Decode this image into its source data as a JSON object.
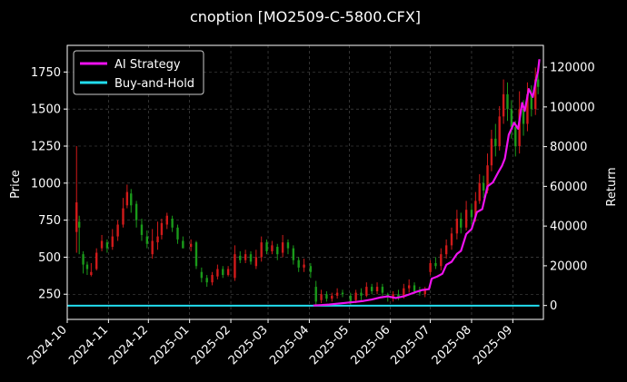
{
  "chart_data": {
    "type": "candlestick+line",
    "title": "cnoption [MO2509-C-5800.CFX]",
    "ylabel_left": "Price",
    "ylabel_right": "Return",
    "x_start": "2024-10-01",
    "x_end": "2025-09-24",
    "x_ticks": [
      "2024-10",
      "2024-11",
      "2024-12",
      "2025-01",
      "2025-02",
      "2025-03",
      "2025-04",
      "2025-05",
      "2025-06",
      "2025-07",
      "2025-08",
      "2025-09"
    ],
    "ylim_left": [
      80,
      1930
    ],
    "yticks_left": [
      250,
      500,
      750,
      1000,
      1250,
      1500,
      1750
    ],
    "ylim_right": [
      -7000,
      131000
    ],
    "yticks_right": [
      0,
      20000,
      40000,
      60000,
      80000,
      100000,
      120000
    ],
    "grid": true,
    "legend_position": "top-left",
    "colors": {
      "background": "#000000",
      "up_candle": "#d11a1a",
      "down_candle": "#1a9a1a",
      "ai_strategy": "#ee11ee",
      "buy_and_hold": "#22ddee",
      "grid": "#555555",
      "legend_border": "#cccccc"
    },
    "series": [
      {
        "name": "AI Strategy",
        "points": [
          [
            "2025-04-04",
            0
          ],
          [
            "2025-04-10",
            200
          ],
          [
            "2025-04-16",
            500
          ],
          [
            "2025-04-22",
            900
          ],
          [
            "2025-04-28",
            1300
          ],
          [
            "2025-05-06",
            1800
          ],
          [
            "2025-05-12",
            2300
          ],
          [
            "2025-05-18",
            3000
          ],
          [
            "2025-05-24",
            4000
          ],
          [
            "2025-05-30",
            4600
          ],
          [
            "2025-06-05",
            3800
          ],
          [
            "2025-06-11",
            4600
          ],
          [
            "2025-06-16",
            5800
          ],
          [
            "2025-06-20",
            6800
          ],
          [
            "2025-06-25",
            7800
          ],
          [
            "2025-06-30",
            8200
          ],
          [
            "2025-07-02",
            13500
          ],
          [
            "2025-07-06",
            14500
          ],
          [
            "2025-07-10",
            16000
          ],
          [
            "2025-07-13",
            20500
          ],
          [
            "2025-07-17",
            22000
          ],
          [
            "2025-07-21",
            26000
          ],
          [
            "2025-07-24",
            27500
          ],
          [
            "2025-07-28",
            36000
          ],
          [
            "2025-08-01",
            38500
          ],
          [
            "2025-08-05",
            47000
          ],
          [
            "2025-08-09",
            48500
          ],
          [
            "2025-08-13",
            60000
          ],
          [
            "2025-08-17",
            62000
          ],
          [
            "2025-08-21",
            67000
          ],
          [
            "2025-08-24",
            70500
          ],
          [
            "2025-08-26",
            74000
          ],
          [
            "2025-08-29",
            86000
          ],
          [
            "2025-09-02",
            92000
          ],
          [
            "2025-09-05",
            89000
          ],
          [
            "2025-09-08",
            102000
          ],
          [
            "2025-09-10",
            98000
          ],
          [
            "2025-09-13",
            109000
          ],
          [
            "2025-09-16",
            105000
          ],
          [
            "2025-09-18",
            112000
          ],
          [
            "2025-09-20",
            118000
          ],
          [
            "2025-09-21",
            124000
          ]
        ]
      },
      {
        "name": "Buy-and-Hold",
        "points": [
          [
            "2024-10-01",
            -100
          ],
          [
            "2025-09-21",
            -100
          ]
        ]
      }
    ],
    "candles": [
      [
        "2024-10-08",
        670,
        870,
        530,
        1250
      ],
      [
        "2024-10-10",
        740,
        700,
        520,
        780
      ],
      [
        "2024-10-13",
        520,
        450,
        390,
        540
      ],
      [
        "2024-10-16",
        450,
        420,
        380,
        470
      ],
      [
        "2024-10-19",
        380,
        400,
        370,
        460
      ],
      [
        "2024-10-23",
        420,
        530,
        410,
        560
      ],
      [
        "2024-10-27",
        560,
        610,
        540,
        650
      ],
      [
        "2024-10-31",
        600,
        560,
        530,
        620
      ],
      [
        "2024-11-04",
        570,
        640,
        550,
        690
      ],
      [
        "2024-11-08",
        640,
        720,
        610,
        750
      ],
      [
        "2024-11-12",
        720,
        830,
        700,
        900
      ],
      [
        "2024-11-15",
        850,
        940,
        830,
        990
      ],
      [
        "2024-11-18",
        930,
        850,
        800,
        960
      ],
      [
        "2024-11-22",
        860,
        750,
        700,
        880
      ],
      [
        "2024-11-26",
        720,
        650,
        610,
        760
      ],
      [
        "2024-11-30",
        640,
        590,
        560,
        680
      ],
      [
        "2024-12-04",
        520,
        610,
        490,
        690
      ],
      [
        "2024-12-08",
        600,
        640,
        550,
        740
      ],
      [
        "2024-12-11",
        650,
        730,
        620,
        760
      ],
      [
        "2024-12-15",
        720,
        780,
        690,
        800
      ],
      [
        "2024-12-19",
        760,
        700,
        670,
        780
      ],
      [
        "2024-12-23",
        700,
        620,
        590,
        720
      ],
      [
        "2024-12-27",
        610,
        560,
        560,
        640
      ],
      [
        "2025-01-02",
        570,
        590,
        540,
        620
      ],
      [
        "2025-01-06",
        600,
        440,
        420,
        610
      ],
      [
        "2025-01-10",
        400,
        360,
        330,
        430
      ],
      [
        "2025-01-14",
        360,
        330,
        300,
        380
      ],
      [
        "2025-01-18",
        330,
        380,
        310,
        400
      ],
      [
        "2025-01-22",
        370,
        420,
        350,
        450
      ],
      [
        "2025-01-26",
        420,
        380,
        360,
        440
      ],
      [
        "2025-01-30",
        380,
        420,
        370,
        440
      ],
      [
        "2025-02-04",
        360,
        520,
        340,
        580
      ],
      [
        "2025-02-08",
        510,
        480,
        460,
        540
      ],
      [
        "2025-02-12",
        480,
        520,
        460,
        550
      ],
      [
        "2025-02-16",
        520,
        470,
        450,
        540
      ],
      [
        "2025-02-20",
        440,
        500,
        420,
        550
      ],
      [
        "2025-02-24",
        500,
        600,
        470,
        640
      ],
      [
        "2025-02-28",
        600,
        540,
        520,
        620
      ],
      [
        "2025-03-04",
        540,
        580,
        520,
        610
      ],
      [
        "2025-03-08",
        570,
        520,
        480,
        590
      ],
      [
        "2025-03-12",
        530,
        600,
        500,
        650
      ],
      [
        "2025-03-16",
        600,
        560,
        520,
        620
      ],
      [
        "2025-03-20",
        560,
        480,
        450,
        580
      ],
      [
        "2025-03-24",
        480,
        430,
        400,
        500
      ],
      [
        "2025-03-28",
        430,
        450,
        400,
        490
      ],
      [
        "2025-04-02",
        440,
        400,
        360,
        460
      ],
      [
        "2025-04-06",
        300,
        200,
        170,
        340
      ],
      [
        "2025-04-10",
        210,
        250,
        190,
        280
      ],
      [
        "2025-04-14",
        250,
        220,
        200,
        270
      ],
      [
        "2025-04-18",
        220,
        240,
        200,
        260
      ],
      [
        "2025-04-22",
        240,
        260,
        220,
        290
      ],
      [
        "2025-04-26",
        260,
        250,
        230,
        280
      ],
      [
        "2025-05-02",
        240,
        200,
        180,
        260
      ],
      [
        "2025-05-06",
        210,
        260,
        190,
        280
      ],
      [
        "2025-05-10",
        260,
        240,
        210,
        290
      ],
      [
        "2025-05-14",
        240,
        300,
        230,
        330
      ],
      [
        "2025-05-18",
        300,
        270,
        250,
        320
      ],
      [
        "2025-05-22",
        270,
        300,
        250,
        330
      ],
      [
        "2025-05-26",
        300,
        260,
        240,
        320
      ],
      [
        "2025-05-30",
        250,
        230,
        200,
        260
      ],
      [
        "2025-06-03",
        220,
        250,
        200,
        270
      ],
      [
        "2025-06-07",
        250,
        230,
        210,
        280
      ],
      [
        "2025-06-11",
        230,
        290,
        220,
        320
      ],
      [
        "2025-06-15",
        290,
        310,
        260,
        350
      ],
      [
        "2025-06-19",
        310,
        270,
        250,
        330
      ],
      [
        "2025-06-23",
        270,
        260,
        240,
        300
      ],
      [
        "2025-06-27",
        250,
        280,
        230,
        300
      ],
      [
        "2025-07-01",
        400,
        460,
        380,
        480
      ],
      [
        "2025-07-05",
        460,
        440,
        420,
        500
      ],
      [
        "2025-07-09",
        440,
        520,
        410,
        560
      ],
      [
        "2025-07-13",
        520,
        580,
        490,
        620
      ],
      [
        "2025-07-17",
        580,
        660,
        550,
        700
      ],
      [
        "2025-07-21",
        660,
        760,
        620,
        820
      ],
      [
        "2025-07-24",
        760,
        700,
        660,
        800
      ],
      [
        "2025-07-28",
        700,
        820,
        680,
        880
      ],
      [
        "2025-08-01",
        820,
        770,
        720,
        860
      ],
      [
        "2025-08-04",
        770,
        880,
        740,
        940
      ],
      [
        "2025-08-07",
        880,
        1000,
        860,
        1060
      ],
      [
        "2025-08-10",
        1000,
        950,
        900,
        1050
      ],
      [
        "2025-08-13",
        950,
        1120,
        930,
        1200
      ],
      [
        "2025-08-16",
        1120,
        1300,
        1080,
        1360
      ],
      [
        "2025-08-19",
        1300,
        1250,
        1180,
        1400
      ],
      [
        "2025-08-22",
        1250,
        1450,
        1220,
        1520
      ],
      [
        "2025-08-25",
        1450,
        1600,
        1400,
        1700
      ],
      [
        "2025-08-28",
        1600,
        1500,
        1420,
        1680
      ],
      [
        "2025-08-31",
        1500,
        1380,
        1300,
        1560
      ],
      [
        "2025-09-03",
        1380,
        1250,
        1180,
        1420
      ],
      [
        "2025-09-06",
        1250,
        1500,
        1200,
        1620
      ],
      [
        "2025-09-09",
        1500,
        1400,
        1320,
        1560
      ],
      [
        "2025-09-12",
        1400,
        1600,
        1350,
        1680
      ],
      [
        "2025-09-15",
        1600,
        1500,
        1450,
        1660
      ],
      [
        "2025-09-18",
        1500,
        1700,
        1460,
        1780
      ],
      [
        "2025-09-20",
        1700,
        1650,
        1600,
        1760
      ]
    ]
  }
}
